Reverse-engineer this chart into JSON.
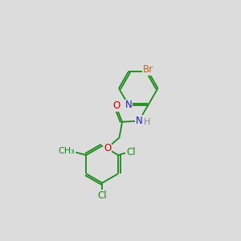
{
  "bg_color": "#dcdcdc",
  "atom_colors": {
    "C": "#1a8a1a",
    "N": "#2020cc",
    "O": "#cc0000",
    "Br": "#cc6600",
    "Cl": "#1a8a1a",
    "H": "#888888"
  },
  "bond_color": "#1a8a1a",
  "font_size": 8.5
}
